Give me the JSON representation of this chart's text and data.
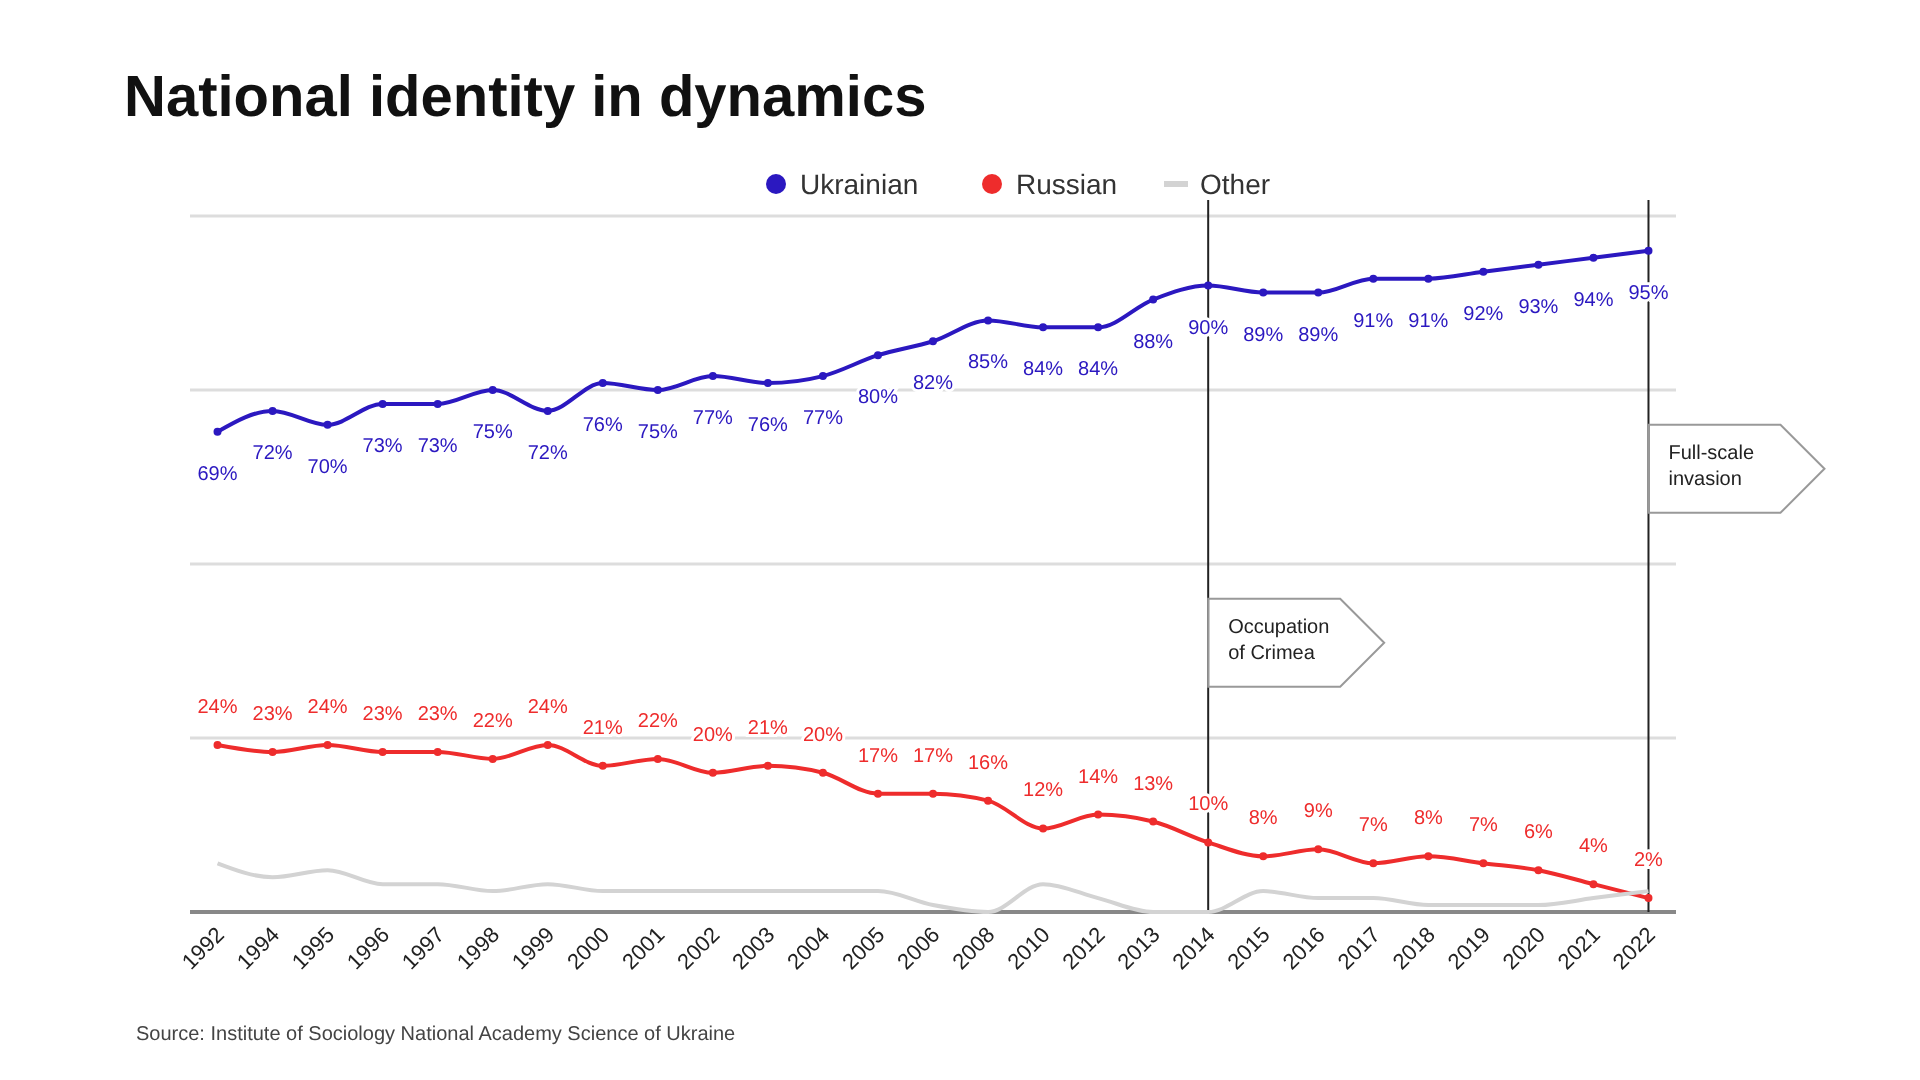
{
  "chart_data": {
    "type": "line",
    "title": "National identity in dynamics",
    "categories": [
      "1992",
      "1994",
      "1995",
      "1996",
      "1997",
      "1998",
      "1999",
      "2000",
      "2001",
      "2002",
      "2003",
      "2004",
      "2005",
      "2006",
      "2008",
      "2010",
      "2012",
      "2013",
      "2014",
      "2015",
      "2016",
      "2017",
      "2018",
      "2019",
      "2020",
      "2021",
      "2022"
    ],
    "series": [
      {
        "name": "Ukrainian",
        "color": "#2b18c0",
        "values": [
          69,
          72,
          70,
          73,
          73,
          75,
          72,
          76,
          75,
          77,
          76,
          77,
          80,
          82,
          85,
          84,
          84,
          88,
          90,
          89,
          89,
          91,
          91,
          92,
          93,
          94,
          95
        ],
        "value_labels": [
          "69%",
          "72%",
          "70%",
          "73%",
          "73%",
          "75%",
          "72%",
          "76%",
          "75%",
          "77%",
          "76%",
          "77%",
          "80%",
          "82%",
          "85%",
          "84%",
          "84%",
          "88%",
          "90%",
          "89%",
          "89%",
          "91%",
          "91%",
          "92%",
          "93%",
          "94%",
          "95%"
        ]
      },
      {
        "name": "Russian",
        "color": "#ee2c2c",
        "values": [
          24,
          23,
          24,
          23,
          23,
          22,
          24,
          21,
          22,
          20,
          21,
          20,
          17,
          17,
          16,
          12,
          14,
          13,
          10,
          8,
          9,
          7,
          8,
          7,
          6,
          4,
          2
        ],
        "value_labels": [
          "24%",
          "23%",
          "24%",
          "23%",
          "23%",
          "22%",
          "24%",
          "21%",
          "22%",
          "20%",
          "21%",
          "20%",
          "17%",
          "17%",
          "16%",
          "12%",
          "14%",
          "13%",
          "10%",
          "8%",
          "9%",
          "7%",
          "8%",
          "7%",
          "6%",
          "4%",
          "2%"
        ]
      },
      {
        "name": "Other",
        "color": "#d3d3d3",
        "marker": "none",
        "values": [
          7,
          5,
          6,
          4,
          4,
          3,
          4,
          3,
          3,
          3,
          3,
          3,
          3,
          1,
          0,
          4,
          2,
          0,
          0,
          3,
          2,
          2,
          1,
          1,
          1,
          2,
          3
        ]
      }
    ],
    "ylim": [
      0,
      100
    ],
    "yticks": [
      {
        "value": 0,
        "label": null
      },
      {
        "value": 25,
        "label": null
      },
      {
        "value": 50,
        "label": null
      },
      {
        "value": 75,
        "label": null
      },
      {
        "value": 100,
        "label": null
      }
    ],
    "tick_labels": "x",
    "grid": "y",
    "legend": "top",
    "marker": "circle",
    "ref_lines": [
      {
        "axis": "x",
        "value": "2014",
        "label": "Occupation of Crimea",
        "color": "#222222"
      },
      {
        "axis": "x",
        "value": "2022",
        "label": "Full-scale invasion",
        "color": "#222222"
      }
    ],
    "annotations": [
      "Source: Institute of Sociology National Academy Science of Ukraine"
    ]
  }
}
